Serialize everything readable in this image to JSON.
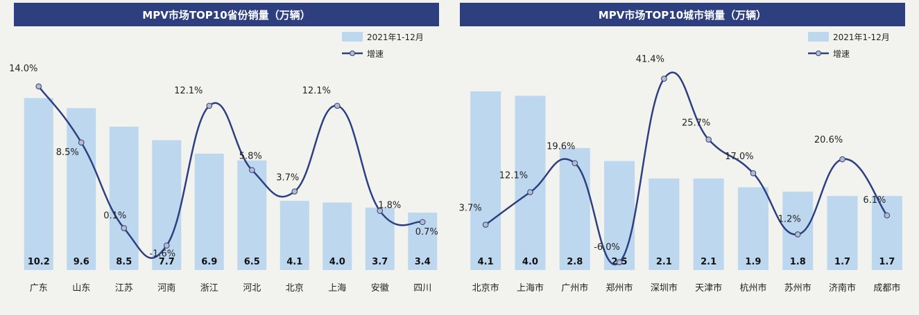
{
  "chart_data": [
    {
      "type": "bar",
      "title": "MPV市场TOP10省份销量（万辆）",
      "legend": {
        "bar": "2021年1-12月",
        "line": "增速",
        "placement": "top-right"
      },
      "categories": [
        "广东",
        "山东",
        "江苏",
        "河南",
        "浙江",
        "河北",
        "北京",
        "上海",
        "安徽",
        "四川"
      ],
      "values": [
        10.2,
        9.6,
        8.5,
        7.7,
        6.9,
        6.5,
        4.1,
        4.0,
        3.7,
        3.4
      ],
      "value_labels": [
        "10.2",
        "9.6",
        "8.5",
        "7.7",
        "6.9",
        "6.5",
        "4.1",
        "4.0",
        "3.7",
        "3.4"
      ],
      "growth": [
        14.0,
        8.5,
        0.1,
        -1.6,
        12.1,
        5.8,
        3.7,
        12.1,
        1.8,
        0.7
      ],
      "growth_labels": [
        "14.0%",
        "8.5%",
        "0.1%",
        "-1.6%",
        "12.1%",
        "5.8%",
        "3.7%",
        "12.1%",
        "1.8%",
        "0.7%"
      ],
      "ylim": [
        0,
        12.4
      ],
      "growth_lim": [
        -4,
        16.5
      ],
      "grid": false,
      "colors": {
        "bar": "#bdd7ee",
        "line": "#2e3f7f",
        "header": "#2e3f7f"
      }
    },
    {
      "type": "bar",
      "title": "MPV市场TOP10城市销量（万辆）",
      "legend": {
        "bar": "2021年1-12月",
        "line": "增速",
        "placement": "top-right"
      },
      "categories": [
        "北京市",
        "上海市",
        "广州市",
        "郑州市",
        "深圳市",
        "天津市",
        "杭州市",
        "苏州市",
        "济南市",
        "成都市"
      ],
      "values": [
        4.1,
        4.0,
        2.8,
        2.5,
        2.1,
        2.1,
        1.9,
        1.8,
        1.7,
        1.7
      ],
      "value_labels": [
        "4.1",
        "4.0",
        "2.8",
        "2.5",
        "2.1",
        "2.1",
        "1.9",
        "1.8",
        "1.7",
        "1.7"
      ],
      "growth": [
        3.7,
        12.1,
        19.6,
        -6.0,
        41.4,
        25.7,
        17.0,
        1.2,
        20.6,
        6.1
      ],
      "growth_labels": [
        "3.7%",
        "12.1%",
        "19.6%",
        "-6.0%",
        "41.4%",
        "25.7%",
        "17.0%",
        "1.2%",
        "20.6%",
        "6.1%"
      ],
      "ylim": [
        0,
        4.8
      ],
      "growth_lim": [
        -8,
        46
      ],
      "grid": false,
      "colors": {
        "bar": "#bdd7ee",
        "line": "#2e3f7f",
        "header": "#2e3f7f"
      }
    }
  ]
}
